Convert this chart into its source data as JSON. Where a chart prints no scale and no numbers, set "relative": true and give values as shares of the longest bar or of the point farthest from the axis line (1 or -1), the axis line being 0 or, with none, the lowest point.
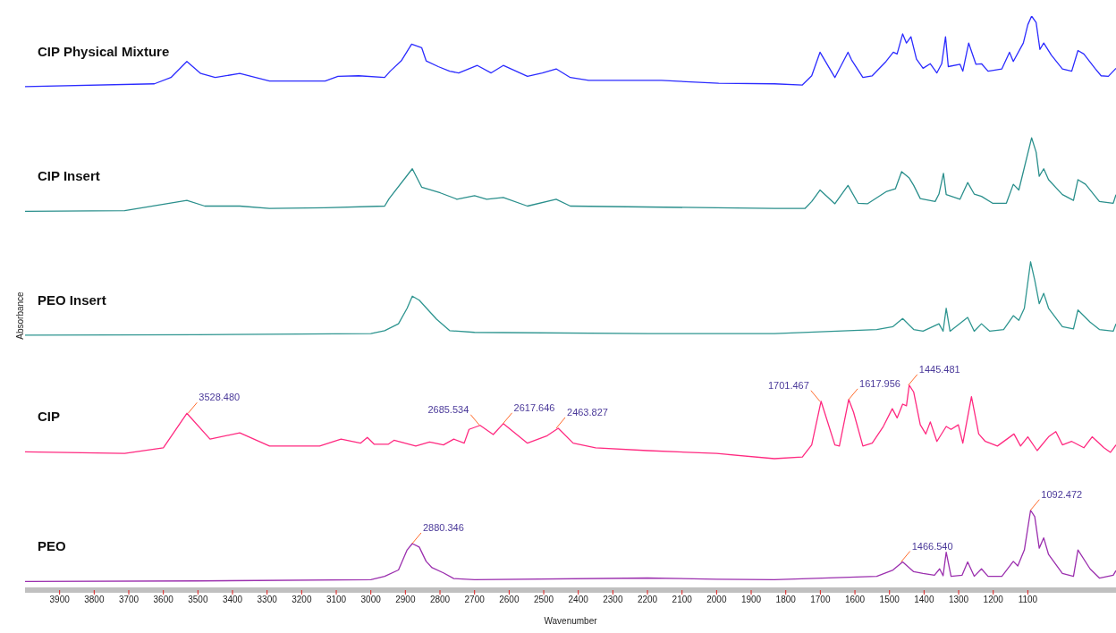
{
  "chart_data": {
    "type": "line",
    "xlabel": "Wavenumber",
    "ylabel": "Absorbance",
    "relative": true,
    "xlim": [
      4000,
      845
    ],
    "xticks": [
      3900,
      3800,
      3700,
      3600,
      3500,
      3400,
      3300,
      3200,
      3100,
      3000,
      2900,
      2800,
      2700,
      2600,
      2500,
      2400,
      2300,
      2200,
      2100,
      2000,
      1900,
      1800,
      1700,
      1600,
      1500,
      1400,
      1300,
      1200,
      1100
    ],
    "grid": false,
    "legend": false,
    "marker": "none",
    "line_style": "solid",
    "series": [
      {
        "name": "CIP Physical Mixture",
        "color": "#2b2bff",
        "x": [
          4000,
          3626,
          3578,
          3532,
          3492,
          3450,
          3379,
          3293,
          3132,
          3095,
          3035,
          2960,
          2944,
          2912,
          2882,
          2853,
          2840,
          2805,
          2772,
          2746,
          2692,
          2652,
          2617,
          2547,
          2504,
          2464,
          2423,
          2370,
          2160,
          1994,
          1833,
          1752,
          1725,
          1701,
          1658,
          1620,
          1610,
          1577,
          1550,
          1510,
          1489,
          1478,
          1462,
          1451,
          1438,
          1422,
          1403,
          1382,
          1363,
          1349,
          1338,
          1330,
          1296,
          1288,
          1271,
          1250,
          1234,
          1215,
          1175,
          1153,
          1142,
          1113,
          1100,
          1089,
          1076,
          1065,
          1054,
          1032,
          1000,
          973,
          955,
          938,
          906,
          888,
          867,
          845
        ],
        "values": [
          0.877,
          0.882,
          0.893,
          0.921,
          0.9,
          0.893,
          0.9,
          0.887,
          0.887,
          0.895,
          0.896,
          0.893,
          0.904,
          0.922,
          0.951,
          0.945,
          0.922,
          0.912,
          0.904,
          0.901,
          0.914,
          0.901,
          0.914,
          0.895,
          0.901,
          0.908,
          0.893,
          0.888,
          0.888,
          0.883,
          0.882,
          0.88,
          0.896,
          0.937,
          0.893,
          0.937,
          0.924,
          0.893,
          0.896,
          0.921,
          0.937,
          0.934,
          0.969,
          0.953,
          0.964,
          0.925,
          0.909,
          0.917,
          0.901,
          0.917,
          0.964,
          0.912,
          0.916,
          0.904,
          0.953,
          0.916,
          0.917,
          0.904,
          0.908,
          0.937,
          0.921,
          0.953,
          0.985,
          1.0,
          0.989,
          0.942,
          0.953,
          0.932,
          0.908,
          0.904,
          0.94,
          0.934,
          0.909,
          0.896,
          0.895,
          0.909
        ]
      },
      {
        "name": "CIP Insert",
        "color": "#2a8f8c",
        "x": [
          4000,
          3712,
          3532,
          3480,
          3379,
          3293,
          3132,
          2960,
          2947,
          2880,
          2853,
          2799,
          2751,
          2700,
          2665,
          2617,
          2547,
          2464,
          2423,
          2000,
          1833,
          1744,
          1725,
          1701,
          1658,
          1620,
          1591,
          1564,
          1510,
          1483,
          1465,
          1443,
          1430,
          1411,
          1368,
          1357,
          1344,
          1336,
          1296,
          1274,
          1255,
          1234,
          1202,
          1162,
          1142,
          1126,
          1089,
          1076,
          1067,
          1054,
          1040,
          1000,
          968,
          955,
          933,
          893,
          853,
          845
        ],
        "values": [
          0.66,
          0.661,
          0.679,
          0.669,
          0.669,
          0.665,
          0.666,
          0.669,
          0.682,
          0.734,
          0.702,
          0.692,
          0.681,
          0.687,
          0.681,
          0.684,
          0.669,
          0.681,
          0.669,
          0.666,
          0.665,
          0.665,
          0.677,
          0.697,
          0.673,
          0.705,
          0.674,
          0.673,
          0.694,
          0.699,
          0.729,
          0.718,
          0.705,
          0.682,
          0.677,
          0.69,
          0.726,
          0.689,
          0.681,
          0.71,
          0.69,
          0.686,
          0.674,
          0.674,
          0.707,
          0.697,
          0.788,
          0.763,
          0.721,
          0.734,
          0.715,
          0.689,
          0.679,
          0.715,
          0.707,
          0.677,
          0.674,
          0.689
        ]
      },
      {
        "name": "PEO Insert",
        "color": "#2e9590",
        "x": [
          4000,
          3500,
          3000,
          2960,
          2920,
          2895,
          2880,
          2860,
          2810,
          2772,
          2700,
          2200,
          1833,
          1537,
          1490,
          1462,
          1430,
          1403,
          1357,
          1345,
          1336,
          1325,
          1274,
          1255,
          1234,
          1210,
          1170,
          1142,
          1126,
          1110,
          1092,
          1080,
          1067,
          1054,
          1040,
          1000,
          968,
          955,
          920,
          893,
          853,
          845
        ],
        "values": [
          0.444,
          0.445,
          0.447,
          0.452,
          0.464,
          0.491,
          0.512,
          0.505,
          0.472,
          0.452,
          0.449,
          0.447,
          0.447,
          0.454,
          0.459,
          0.473,
          0.454,
          0.451,
          0.464,
          0.451,
          0.491,
          0.451,
          0.475,
          0.451,
          0.464,
          0.451,
          0.454,
          0.478,
          0.47,
          0.491,
          0.572,
          0.54,
          0.499,
          0.517,
          0.491,
          0.459,
          0.455,
          0.488,
          0.467,
          0.454,
          0.451,
          0.464
        ]
      },
      {
        "name": "CIP",
        "color": "#ff2a80",
        "x": [
          4000,
          3712,
          3600,
          3532,
          3465,
          3379,
          3293,
          3148,
          3086,
          3030,
          3010,
          2990,
          2950,
          2933,
          2870,
          2830,
          2790,
          2760,
          2730,
          2716,
          2684,
          2646,
          2617,
          2547,
          2490,
          2458,
          2415,
          2350,
          2200,
          2000,
          1833,
          1752,
          1725,
          1698,
          1658,
          1645,
          1618,
          1604,
          1577,
          1550,
          1518,
          1492,
          1478,
          1462,
          1451,
          1443,
          1430,
          1411,
          1395,
          1382,
          1363,
          1336,
          1322,
          1301,
          1288,
          1263,
          1242,
          1223,
          1188,
          1140,
          1121,
          1100,
          1073,
          1040,
          1019,
          1000,
          973,
          938,
          914,
          880,
          861,
          845
        ],
        "values": [
          0.241,
          0.238,
          0.248,
          0.308,
          0.263,
          0.274,
          0.251,
          0.251,
          0.263,
          0.256,
          0.266,
          0.254,
          0.254,
          0.261,
          0.251,
          0.258,
          0.253,
          0.263,
          0.256,
          0.28,
          0.287,
          0.271,
          0.29,
          0.256,
          0.269,
          0.282,
          0.256,
          0.248,
          0.243,
          0.238,
          0.229,
          0.232,
          0.253,
          0.329,
          0.253,
          0.251,
          0.332,
          0.31,
          0.251,
          0.256,
          0.285,
          0.316,
          0.3,
          0.324,
          0.321,
          0.357,
          0.345,
          0.288,
          0.272,
          0.293,
          0.259,
          0.285,
          0.28,
          0.288,
          0.256,
          0.337,
          0.272,
          0.259,
          0.251,
          0.272,
          0.251,
          0.267,
          0.243,
          0.267,
          0.276,
          0.253,
          0.259,
          0.248,
          0.267,
          0.248,
          0.24,
          0.253
        ]
      },
      {
        "name": "PEO",
        "color": "#9b2fae",
        "x": [
          4000,
          3500,
          3000,
          2960,
          2920,
          2895,
          2880,
          2860,
          2840,
          2823,
          2790,
          2760,
          2700,
          2200,
          2000,
          1833,
          1537,
          1490,
          1462,
          1430,
          1403,
          1370,
          1355,
          1345,
          1336,
          1322,
          1290,
          1274,
          1255,
          1234,
          1215,
          1175,
          1142,
          1129,
          1110,
          1092,
          1080,
          1067,
          1054,
          1040,
          1000,
          968,
          955,
          920,
          893,
          853,
          845
        ],
        "values": [
          0.015,
          0.016,
          0.018,
          0.024,
          0.035,
          0.07,
          0.081,
          0.075,
          0.05,
          0.039,
          0.03,
          0.02,
          0.018,
          0.021,
          0.019,
          0.018,
          0.024,
          0.035,
          0.049,
          0.032,
          0.029,
          0.026,
          0.037,
          0.025,
          0.066,
          0.024,
          0.026,
          0.049,
          0.024,
          0.037,
          0.024,
          0.024,
          0.05,
          0.042,
          0.07,
          0.139,
          0.128,
          0.073,
          0.091,
          0.062,
          0.029,
          0.024,
          0.07,
          0.037,
          0.021,
          0.026,
          0.034
        ]
      }
    ],
    "annotations": [
      {
        "text": "3528.480",
        "x": 3528.48,
        "y": 0.308
      },
      {
        "text": "2685.534",
        "x": 2685.534,
        "y": 0.287
      },
      {
        "text": "2617.646",
        "x": 2617.646,
        "y": 0.29
      },
      {
        "text": "2463.827",
        "x": 2463.827,
        "y": 0.282
      },
      {
        "text": "1701.467",
        "x": 1701.467,
        "y": 0.329
      },
      {
        "text": "1617.956",
        "x": 1617.956,
        "y": 0.332
      },
      {
        "text": "1445.481",
        "x": 1445.481,
        "y": 0.357
      },
      {
        "text": "2880.346",
        "x": 2880.346,
        "y": 0.081
      },
      {
        "text": "1466.540",
        "x": 1466.54,
        "y": 0.049
      },
      {
        "text": "1092.472",
        "x": 1092.472,
        "y": 0.139
      }
    ]
  }
}
